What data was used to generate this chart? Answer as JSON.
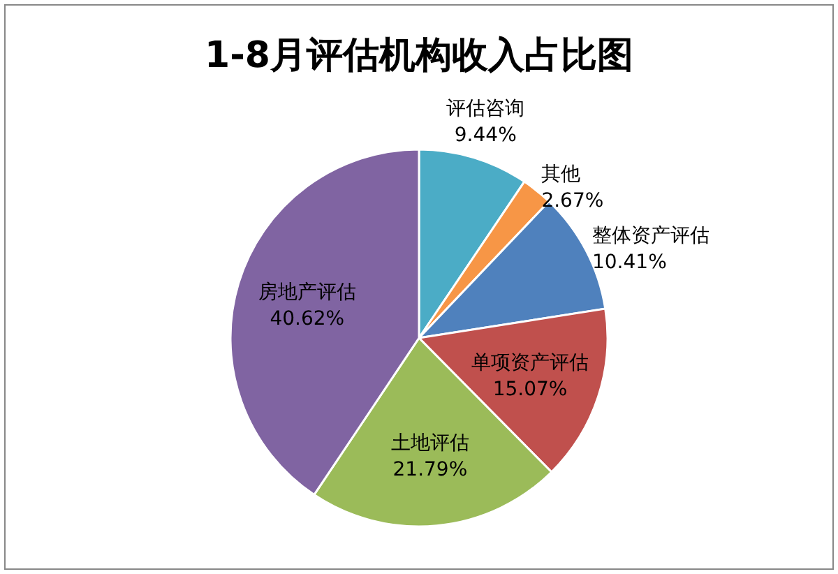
{
  "chart_data": {
    "type": "pie",
    "title": "1-8月评估机构收入占比图",
    "categories": [
      "评估咨询",
      "其他",
      "整体资产评估",
      "单项资产评估",
      "土地评估",
      "房地产评估"
    ],
    "values": [
      9.44,
      2.67,
      10.41,
      15.07,
      21.79,
      40.62
    ],
    "colors": [
      "#4bacc6",
      "#f79646",
      "#4f81bd",
      "#c0504d",
      "#9bbb59",
      "#8064a2"
    ],
    "value_labels": [
      "9.44%",
      "2.67%",
      "10.41%",
      "15.07%",
      "21.79%",
      "40.62%"
    ]
  }
}
